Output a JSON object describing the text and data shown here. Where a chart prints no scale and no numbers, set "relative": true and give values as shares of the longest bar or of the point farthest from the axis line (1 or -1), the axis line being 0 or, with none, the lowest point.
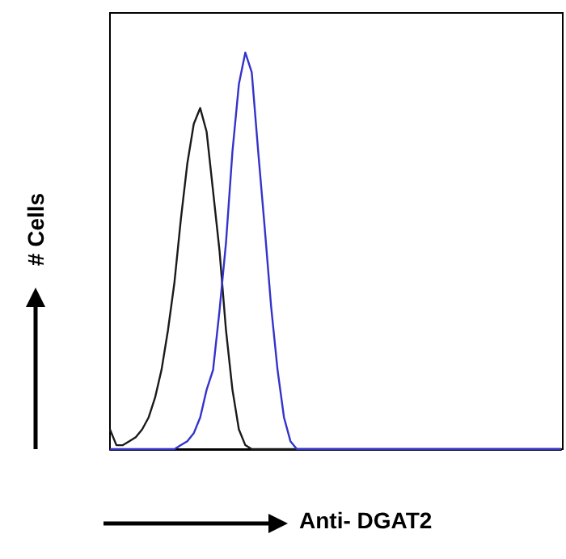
{
  "chart_data": {
    "type": "line",
    "xlabel": "Anti- DGAT2",
    "ylabel": "# Cells",
    "relative": true,
    "marker": "none",
    "line_style": "solid",
    "categories": [
      null,
      null,
      null,
      null,
      null,
      null,
      null,
      null,
      null,
      null,
      null,
      null,
      null,
      null,
      null,
      null,
      null,
      null,
      null,
      null,
      null,
      null,
      null,
      null,
      null,
      null,
      null,
      null,
      null,
      null,
      null,
      null,
      null,
      null,
      null,
      null,
      null,
      null,
      null,
      null,
      null,
      null,
      null,
      null,
      null,
      null,
      null,
      null,
      null,
      null,
      null,
      null,
      null,
      null,
      null,
      null,
      null,
      null,
      null,
      null,
      null,
      null,
      null,
      null,
      null,
      null,
      null,
      null,
      null,
      null,
      null
    ],
    "series": [
      {
        "color": "#1a1a1a",
        "values": [
          0.05,
          0.01,
          0.01,
          0.02,
          0.03,
          0.05,
          0.08,
          0.13,
          0.2,
          0.3,
          0.42,
          0.58,
          0.72,
          0.82,
          0.86,
          0.8,
          0.65,
          0.5,
          0.3,
          0.15,
          0.05,
          0.01,
          0,
          0,
          0,
          0,
          0,
          0,
          0,
          0,
          0,
          0,
          0,
          0,
          0,
          0,
          0,
          0,
          0,
          0,
          0,
          0,
          0,
          0,
          0,
          0,
          0,
          0,
          0,
          0,
          0,
          0,
          0,
          0,
          0,
          0,
          0,
          0,
          0,
          0,
          0,
          0,
          0,
          0,
          0,
          0,
          0,
          0,
          0,
          0,
          0
        ]
      },
      {
        "color": "#3333cc",
        "values": [
          0,
          0,
          0,
          0,
          0,
          0,
          0,
          0,
          0,
          0,
          0,
          0.01,
          0.02,
          0.04,
          0.08,
          0.15,
          0.2,
          0.35,
          0.52,
          0.75,
          0.92,
          1,
          0.95,
          0.75,
          0.56,
          0.36,
          0.2,
          0.08,
          0.02,
          0,
          0,
          0,
          0,
          0,
          0,
          0,
          0,
          0,
          0,
          0,
          0,
          0,
          0,
          0,
          0,
          0,
          0,
          0,
          0,
          0,
          0,
          0,
          0,
          0,
          0,
          0,
          0,
          0,
          0,
          0,
          0,
          0,
          0,
          0,
          0,
          0,
          0,
          0,
          0,
          0,
          0
        ]
      }
    ]
  }
}
